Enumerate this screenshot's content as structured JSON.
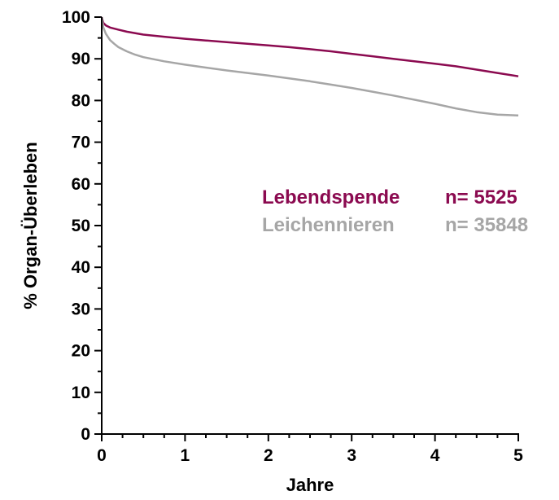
{
  "chart_data": {
    "type": "line",
    "xlabel": "Jahre",
    "ylabel": "% Organ-Überleben",
    "xlim": [
      0,
      5
    ],
    "ylim": [
      0,
      100
    ],
    "x_ticks": [
      "0",
      "1",
      "2",
      "3",
      "4",
      "5"
    ],
    "y_ticks": [
      "0",
      "10",
      "20",
      "30",
      "40",
      "50",
      "60",
      "70",
      "80",
      "90",
      "100"
    ],
    "grid": false,
    "legend_position": "right",
    "series": [
      {
        "name": "Lebendspende",
        "n_label": "n= 5525",
        "color": "#8b0a50",
        "x": [
          0,
          0.02,
          0.05,
          0.1,
          0.2,
          0.3,
          0.5,
          0.75,
          1.0,
          1.25,
          1.5,
          1.75,
          2.0,
          2.25,
          2.5,
          2.75,
          3.0,
          3.25,
          3.5,
          3.75,
          4.0,
          4.25,
          4.5,
          4.75,
          5.0
        ],
        "y": [
          100,
          98.6,
          98.0,
          97.5,
          97.0,
          96.5,
          95.8,
          95.3,
          94.8,
          94.4,
          94.0,
          93.6,
          93.2,
          92.8,
          92.3,
          91.8,
          91.2,
          90.6,
          90.0,
          89.4,
          88.8,
          88.2,
          87.4,
          86.6,
          85.8
        ]
      },
      {
        "name": "Leichennieren",
        "n_label": "n= 35848",
        "color": "#a6a6a6",
        "x": [
          0,
          0.02,
          0.05,
          0.1,
          0.15,
          0.2,
          0.3,
          0.4,
          0.5,
          0.75,
          1.0,
          1.25,
          1.5,
          1.75,
          2.0,
          2.25,
          2.5,
          2.75,
          3.0,
          3.25,
          3.5,
          3.75,
          4.0,
          4.25,
          4.5,
          4.75,
          5.0
        ],
        "y": [
          100,
          97.5,
          96.0,
          94.5,
          93.6,
          92.8,
          91.8,
          91.0,
          90.4,
          89.4,
          88.6,
          87.9,
          87.2,
          86.6,
          86.0,
          85.3,
          84.6,
          83.8,
          83.0,
          82.1,
          81.2,
          80.2,
          79.2,
          78.1,
          77.2,
          76.6,
          76.4
        ]
      }
    ]
  }
}
